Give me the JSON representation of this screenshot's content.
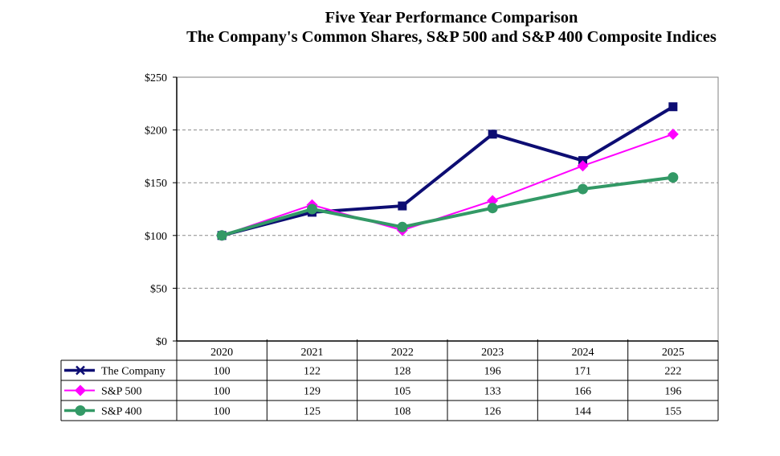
{
  "chart_data": {
    "type": "line",
    "title": "Five Year Performance Comparison",
    "subtitle": "The Company's Common Shares, S&P 500 and S&P 400 Composite Indices",
    "categories": [
      "2020",
      "2021",
      "2022",
      "2023",
      "2024",
      "2025"
    ],
    "ylim": [
      0,
      250
    ],
    "yticks": [
      0,
      50,
      100,
      150,
      200,
      250
    ],
    "ytick_labels": [
      "$0",
      "$50",
      "$100",
      "$150",
      "$200",
      "$250"
    ],
    "grid": "horizontal dashed",
    "legend": "data table below chart",
    "series": [
      {
        "name": "The Company",
        "values": [
          100,
          122,
          128,
          196,
          171,
          222
        ],
        "color": "#0d0d73",
        "marker": "square"
      },
      {
        "name": "S&P 500",
        "values": [
          100,
          129,
          105,
          133,
          166,
          196
        ],
        "color": "#ff00ff",
        "marker": "diamond"
      },
      {
        "name": "S&P 400",
        "values": [
          100,
          125,
          108,
          126,
          144,
          155
        ],
        "color": "#339966",
        "marker": "circle"
      }
    ]
  }
}
